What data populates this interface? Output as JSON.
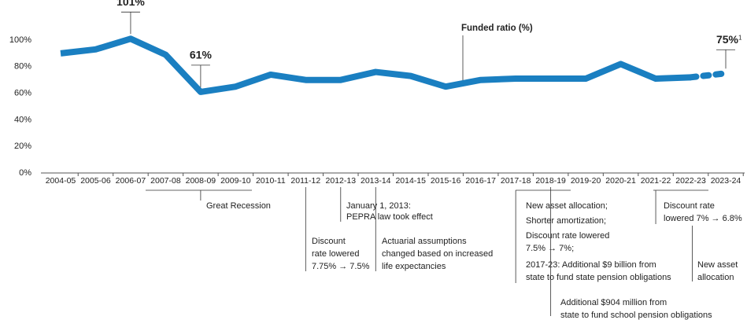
{
  "chart_data": {
    "type": "line",
    "categories": [
      "2004-05",
      "2005-06",
      "2006-07",
      "2007-08",
      "2008-09",
      "2009-10",
      "2010-11",
      "2011-12",
      "2012-13",
      "2013-14",
      "2014-15",
      "2015-16",
      "2016-17",
      "2017-18",
      "2018-19",
      "2019-20",
      "2020-21",
      "2021-22",
      "2022-23",
      "2023-24"
    ],
    "series": [
      {
        "name": "Funded ratio (%)",
        "color": "#1a7fc1",
        "values": [
          90,
          93,
          101,
          89,
          61,
          65,
          74,
          70,
          70,
          76,
          73,
          65,
          70,
          71,
          71,
          71,
          82,
          71,
          72,
          75
        ],
        "value_labels": [
          null,
          null,
          "101%",
          null,
          "61%",
          null,
          null,
          null,
          null,
          null,
          null,
          null,
          null,
          null,
          null,
          null,
          null,
          null,
          null,
          "75%"
        ]
      }
    ],
    "dashed_from": "2022-23",
    "footnote_mark": "1",
    "ylim": [
      0,
      100
    ],
    "yticks": [
      {
        "value": 0,
        "label": "0%"
      },
      {
        "value": 20,
        "label": "20%"
      },
      {
        "value": 40,
        "label": "40%"
      },
      {
        "value": 60,
        "label": "60%"
      },
      {
        "value": 80,
        "label": "80%"
      },
      {
        "value": 100,
        "label": "100%"
      }
    ],
    "annotations": [
      {
        "x": "2008-09",
        "lines": [
          "Great Recession"
        ]
      },
      {
        "x": "2011-12",
        "lines": [
          "Discount",
          "rate lowered",
          "7.75% → 7.5%"
        ]
      },
      {
        "x": "2012-13",
        "lines": [
          "January 1, 2013:",
          "PEPRA law  took effect"
        ]
      },
      {
        "x": "2013-14",
        "lines": [
          "Actuarial assumptions",
          "changed based on increased",
          "life expectancies"
        ]
      },
      {
        "x": "2017-18",
        "lines": [
          "New asset allocation;",
          "Shorter amortization;",
          "Discount rate lowered",
          "7.5% → 7%;",
          "2017-23: Additional $9 billion from",
          "state to fund state pension obligations"
        ]
      },
      {
        "x": "2018-19",
        "lines": [
          "Additional $904 million from",
          "state to fund school pension obligations"
        ]
      },
      {
        "x": "2021-22",
        "lines": [
          "Discount rate",
          "lowered 7% → 6.8%"
        ]
      },
      {
        "x": "2022-23",
        "lines": [
          "New asset",
          "allocation"
        ]
      }
    ]
  }
}
